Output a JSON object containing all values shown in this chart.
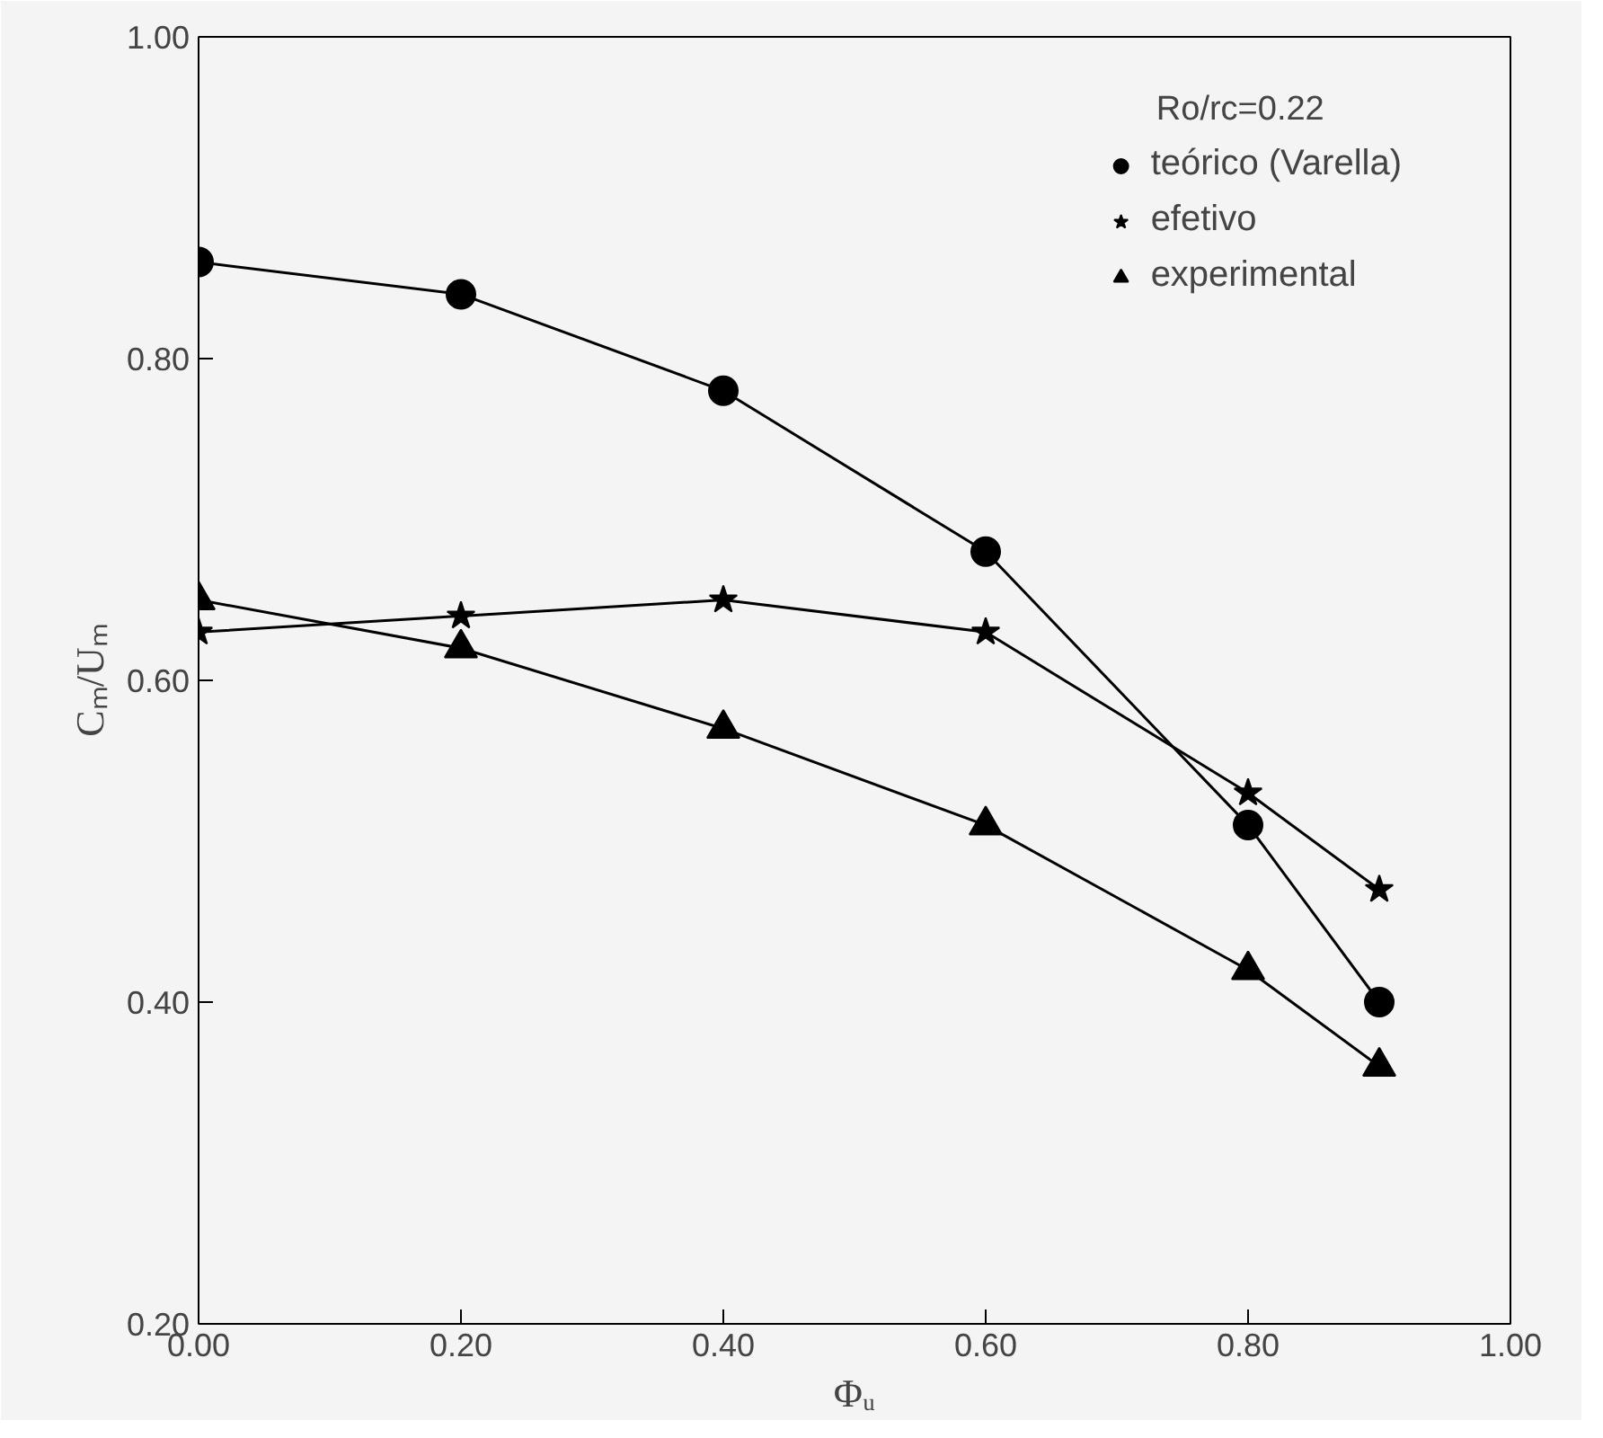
{
  "chart_data": {
    "type": "line",
    "xlabel": "Φᵤ",
    "ylabel": "Cₘ/Uₘ",
    "x": [
      0.0,
      0.2,
      0.4,
      0.6,
      0.8,
      0.9
    ],
    "series": [
      {
        "name": "teórico (Varella)",
        "color": "#000000",
        "marker": "circle",
        "values": [
          0.86,
          0.84,
          0.78,
          0.68,
          0.51,
          0.4
        ]
      },
      {
        "name": "efetivo",
        "color": "#000000",
        "marker": "star",
        "values": [
          0.63,
          0.64,
          0.65,
          0.63,
          0.53,
          0.47
        ]
      },
      {
        "name": "experimental",
        "color": "#000000",
        "marker": "triangle",
        "values": [
          0.65,
          0.62,
          0.57,
          0.51,
          0.42,
          0.36
        ]
      }
    ],
    "xlim": [
      0,
      1
    ],
    "ylim": [
      0.2,
      1
    ],
    "xticks": [
      {
        "value": 0,
        "label": "0.00"
      },
      {
        "value": 0.2,
        "label": "0.20"
      },
      {
        "value": 0.4,
        "label": "0.40"
      },
      {
        "value": 0.6,
        "label": "0.60"
      },
      {
        "value": 0.8,
        "label": "0.80"
      },
      {
        "value": 1,
        "label": "1.00"
      }
    ],
    "yticks": [
      {
        "value": 0.2,
        "label": "0.20"
      },
      {
        "value": 0.4,
        "label": "0.40"
      },
      {
        "value": 0.6,
        "label": "0.60"
      },
      {
        "value": 0.8,
        "label": "0.80"
      },
      {
        "value": 1,
        "label": "1.00"
      }
    ],
    "annotations": [
      "Ro/rc=0.22"
    ],
    "grid": false,
    "legend": "top right",
    "line_style": "solid"
  }
}
